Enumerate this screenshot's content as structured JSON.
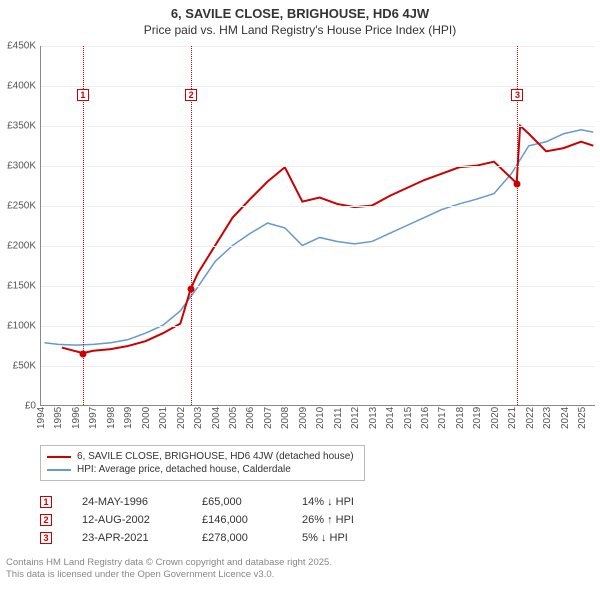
{
  "title": {
    "main": "6, SAVILE CLOSE, BRIGHOUSE, HD6 4JW",
    "sub": "Price paid vs. HM Land Registry's House Price Index (HPI)"
  },
  "chart": {
    "type": "line",
    "background_color": "#ffffff",
    "grid_color": "#eeeeee",
    "axis_color": "#888888",
    "xlim": [
      1994,
      2025.8
    ],
    "ylim": [
      0,
      450000
    ],
    "ytick_step": 50000,
    "y_ticks": [
      "£0",
      "£50K",
      "£100K",
      "£150K",
      "£200K",
      "£250K",
      "£300K",
      "£350K",
      "£400K",
      "£450K"
    ],
    "x_ticks": [
      1994,
      1995,
      1996,
      1997,
      1998,
      1999,
      2000,
      2001,
      2002,
      2003,
      2004,
      2005,
      2006,
      2007,
      2008,
      2009,
      2010,
      2011,
      2012,
      2013,
      2014,
      2015,
      2016,
      2017,
      2018,
      2019,
      2020,
      2021,
      2022,
      2023,
      2024,
      2025
    ],
    "series": [
      {
        "name": "property",
        "color": "#cc0000",
        "width": 2,
        "points": [
          [
            1995.2,
            72
          ],
          [
            1996.4,
            65
          ],
          [
            1997,
            68
          ],
          [
            1998,
            70
          ],
          [
            1999,
            74
          ],
          [
            2000,
            80
          ],
          [
            2001,
            90
          ],
          [
            2002,
            102
          ],
          [
            2002.6,
            146
          ],
          [
            2003,
            165
          ],
          [
            2004,
            200
          ],
          [
            2005,
            235
          ],
          [
            2006,
            258
          ],
          [
            2007,
            280
          ],
          [
            2008,
            298
          ],
          [
            2009,
            255
          ],
          [
            2010,
            260
          ],
          [
            2011,
            252
          ],
          [
            2012,
            248
          ],
          [
            2013,
            250
          ],
          [
            2014,
            262
          ],
          [
            2015,
            272
          ],
          [
            2016,
            282
          ],
          [
            2017,
            290
          ],
          [
            2018,
            298
          ],
          [
            2019,
            300
          ],
          [
            2020,
            305
          ],
          [
            2021.3,
            278
          ],
          [
            2021.5,
            350
          ],
          [
            2022,
            340
          ],
          [
            2023,
            318
          ],
          [
            2024,
            322
          ],
          [
            2025,
            330
          ],
          [
            2025.7,
            325
          ]
        ]
      },
      {
        "name": "hpi",
        "color": "#6699cc",
        "width": 1.5,
        "points": [
          [
            1994.2,
            78
          ],
          [
            1995,
            76
          ],
          [
            1996,
            75
          ],
          [
            1997,
            76
          ],
          [
            1998,
            78
          ],
          [
            1999,
            82
          ],
          [
            2000,
            90
          ],
          [
            2001,
            100
          ],
          [
            2002,
            118
          ],
          [
            2003,
            148
          ],
          [
            2004,
            180
          ],
          [
            2005,
            200
          ],
          [
            2006,
            215
          ],
          [
            2007,
            228
          ],
          [
            2008,
            222
          ],
          [
            2009,
            200
          ],
          [
            2010,
            210
          ],
          [
            2011,
            205
          ],
          [
            2012,
            202
          ],
          [
            2013,
            205
          ],
          [
            2014,
            215
          ],
          [
            2015,
            225
          ],
          [
            2016,
            235
          ],
          [
            2017,
            245
          ],
          [
            2018,
            252
          ],
          [
            2019,
            258
          ],
          [
            2020,
            265
          ],
          [
            2021,
            290
          ],
          [
            2022,
            325
          ],
          [
            2023,
            330
          ],
          [
            2024,
            340
          ],
          [
            2025,
            345
          ],
          [
            2025.7,
            342
          ]
        ]
      }
    ],
    "sale_markers": [
      {
        "n": "1",
        "x": 1996.4,
        "dot_y": 65,
        "box_y": 88
      },
      {
        "n": "2",
        "x": 2002.6,
        "dot_y": 146,
        "box_y": 88
      },
      {
        "n": "3",
        "x": 2021.3,
        "dot_y": 278,
        "box_y": 88
      }
    ]
  },
  "legend": {
    "items": [
      {
        "color": "#cc0000",
        "label": "6, SAVILE CLOSE, BRIGHOUSE, HD6 4JW (detached house)"
      },
      {
        "color": "#6699cc",
        "label": "HPI: Average price, detached house, Calderdale"
      }
    ]
  },
  "sales": [
    {
      "n": "1",
      "date": "24-MAY-1996",
      "price": "£65,000",
      "delta": "14% ↓ HPI"
    },
    {
      "n": "2",
      "date": "12-AUG-2002",
      "price": "£146,000",
      "delta": "26% ↑ HPI"
    },
    {
      "n": "3",
      "date": "23-APR-2021",
      "price": "£278,000",
      "delta": "5% ↓ HPI"
    }
  ],
  "footer": {
    "line1": "Contains HM Land Registry data © Crown copyright and database right 2025.",
    "line2": "This data is licensed under the Open Government Licence v3.0."
  }
}
